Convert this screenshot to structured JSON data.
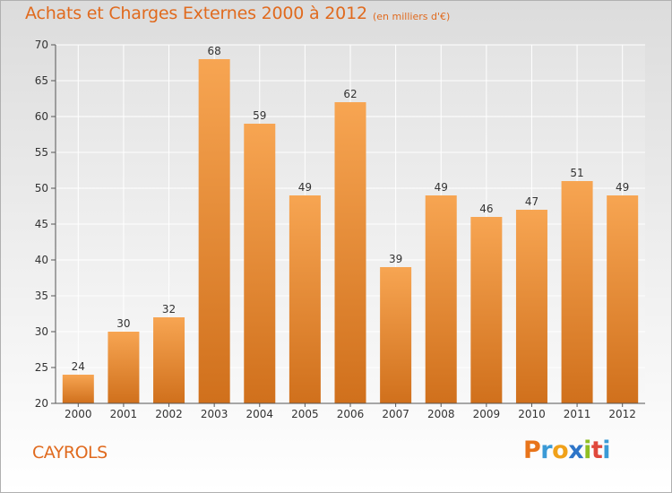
{
  "chart_data": {
    "type": "bar",
    "title": "Achats et Charges Externes 2000 à 2012",
    "subtitle": "(en milliers d'€)",
    "categories": [
      "2000",
      "2001",
      "2002",
      "2003",
      "2004",
      "2005",
      "2006",
      "2007",
      "2008",
      "2009",
      "2010",
      "2011",
      "2012"
    ],
    "values": [
      24,
      30,
      32,
      68,
      59,
      49,
      62,
      39,
      49,
      46,
      47,
      51,
      49
    ],
    "ylim": [
      20,
      70
    ],
    "yticks": [
      20,
      25,
      30,
      35,
      40,
      45,
      50,
      55,
      60,
      65,
      70
    ],
    "grid": true,
    "bar_color_top": "#f7a552",
    "bar_color_bottom": "#d0701c"
  },
  "footer": {
    "place": "CAYROLS",
    "logo_letters": [
      "P",
      "r",
      "o",
      "x",
      "i",
      "t",
      "i"
    ],
    "logo_colors": [
      "#e8741a",
      "#3b9ad6",
      "#f0a11a",
      "#2e75c8",
      "#8fbf24",
      "#e0483c",
      "#3b9ad6"
    ]
  }
}
